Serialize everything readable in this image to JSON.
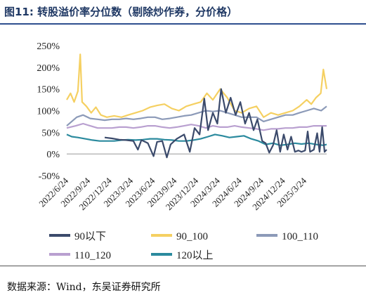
{
  "figure": {
    "number": "图11:",
    "title": "转股溢价率分位数（剔除炒作券，分价格）",
    "source": "数据来源：Wind，东吴证券研究所"
  },
  "chart_data": {
    "type": "line",
    "title": "转股溢价率分位数（剔除炒作券，分价格）",
    "xlabel": "",
    "ylabel": "",
    "x_start": "2022-06-24",
    "x_end": "2025-06-24",
    "x_ticks": [
      "2022/6/24",
      "2022/9/24",
      "2022/12/24",
      "2023/3/24",
      "2023/6/24",
      "2023/9/24",
      "2023/12/24",
      "2024/3/24",
      "2024/6/24",
      "2024/9/24",
      "2024/12/24",
      "2025/3/24"
    ],
    "ylim": [
      -50,
      250
    ],
    "y_ticks": [
      "250%",
      "200%",
      "150%",
      "100%",
      "50%",
      "0%",
      "-50%"
    ],
    "y_tick_values": [
      250,
      200,
      150,
      100,
      50,
      0,
      -50
    ],
    "grid": false,
    "legend_position": "bottom",
    "series": [
      {
        "name": "90以下",
        "color": "#3b4a6b",
        "points": [
          [
            "2022-12-01",
            38
          ],
          [
            "2023-01-01",
            36
          ],
          [
            "2023-02-01",
            33
          ],
          [
            "2023-03-01",
            32
          ],
          [
            "2023-04-01",
            30
          ],
          [
            "2023-04-20",
            10
          ],
          [
            "2023-05-05",
            32
          ],
          [
            "2023-06-01",
            25
          ],
          [
            "2023-06-25",
            -5
          ],
          [
            "2023-07-10",
            28
          ],
          [
            "2023-08-01",
            30
          ],
          [
            "2023-08-20",
            -8
          ],
          [
            "2023-09-05",
            22
          ],
          [
            "2023-10-01",
            35
          ],
          [
            "2023-11-01",
            45
          ],
          [
            "2023-11-25",
            5
          ],
          [
            "2023-12-15",
            60
          ],
          [
            "2024-01-05",
            45
          ],
          [
            "2024-01-25",
            128
          ],
          [
            "2024-02-10",
            55
          ],
          [
            "2024-03-01",
            95
          ],
          [
            "2024-03-20",
            70
          ],
          [
            "2024-04-05",
            150
          ],
          [
            "2024-04-25",
            95
          ],
          [
            "2024-05-15",
            130
          ],
          [
            "2024-06-05",
            90
          ],
          [
            "2024-06-25",
            120
          ],
          [
            "2024-07-15",
            70
          ],
          [
            "2024-08-01",
            95
          ],
          [
            "2024-08-20",
            55
          ],
          [
            "2024-09-05",
            80
          ],
          [
            "2024-09-25",
            30
          ],
          [
            "2024-10-10",
            25
          ],
          [
            "2024-10-25",
            3
          ],
          [
            "2024-11-10",
            20
          ],
          [
            "2024-11-25",
            55
          ],
          [
            "2024-12-10",
            5
          ],
          [
            "2024-12-25",
            45
          ],
          [
            "2025-01-10",
            10
          ],
          [
            "2025-01-25",
            40
          ],
          [
            "2025-02-10",
            5
          ],
          [
            "2025-02-25",
            8
          ],
          [
            "2025-03-10",
            5
          ],
          [
            "2025-03-25",
            8
          ],
          [
            "2025-04-05",
            52
          ],
          [
            "2025-04-15",
            5
          ],
          [
            "2025-05-01",
            10
          ],
          [
            "2025-05-15",
            48
          ],
          [
            "2025-05-25",
            5
          ],
          [
            "2025-06-05",
            62
          ],
          [
            "2025-06-15",
            5
          ],
          [
            "2025-06-24",
            10
          ]
        ]
      },
      {
        "name": "90_100",
        "color": "#f5d062",
        "points": [
          [
            "2022-06-24",
            125
          ],
          [
            "2022-07-10",
            140
          ],
          [
            "2022-07-25",
            120
          ],
          [
            "2022-08-10",
            145
          ],
          [
            "2022-08-20",
            230
          ],
          [
            "2022-08-28",
            120
          ],
          [
            "2022-09-15",
            110
          ],
          [
            "2022-10-05",
            95
          ],
          [
            "2022-10-25",
            108
          ],
          [
            "2022-11-15",
            90
          ],
          [
            "2022-12-10",
            85
          ],
          [
            "2023-01-10",
            88
          ],
          [
            "2023-02-10",
            85
          ],
          [
            "2023-03-10",
            90
          ],
          [
            "2023-04-10",
            95
          ],
          [
            "2023-05-10",
            100
          ],
          [
            "2023-06-10",
            108
          ],
          [
            "2023-07-10",
            112
          ],
          [
            "2023-08-10",
            115
          ],
          [
            "2023-09-10",
            105
          ],
          [
            "2023-10-10",
            100
          ],
          [
            "2023-11-10",
            110
          ],
          [
            "2023-12-10",
            115
          ],
          [
            "2024-01-10",
            120
          ],
          [
            "2024-02-05",
            140
          ],
          [
            "2024-03-01",
            125
          ],
          [
            "2024-04-01",
            150
          ],
          [
            "2024-05-01",
            130
          ],
          [
            "2024-06-01",
            100
          ],
          [
            "2024-07-01",
            95
          ],
          [
            "2024-08-01",
            105
          ],
          [
            "2024-09-01",
            110
          ],
          [
            "2024-10-01",
            85
          ],
          [
            "2024-11-01",
            95
          ],
          [
            "2024-12-01",
            90
          ],
          [
            "2025-01-01",
            95
          ],
          [
            "2025-02-01",
            100
          ],
          [
            "2025-03-01",
            110
          ],
          [
            "2025-04-01",
            125
          ],
          [
            "2025-04-20",
            115
          ],
          [
            "2025-05-10",
            130
          ],
          [
            "2025-05-30",
            140
          ],
          [
            "2025-06-10",
            195
          ],
          [
            "2025-06-24",
            150
          ]
        ]
      },
      {
        "name": "100_110",
        "color": "#8c9ab8",
        "points": [
          [
            "2022-06-24",
            65
          ],
          [
            "2022-07-15",
            75
          ],
          [
            "2022-08-05",
            85
          ],
          [
            "2022-09-01",
            90
          ],
          [
            "2022-10-01",
            82
          ],
          [
            "2022-11-01",
            80
          ],
          [
            "2022-12-01",
            78
          ],
          [
            "2023-01-01",
            80
          ],
          [
            "2023-02-01",
            80
          ],
          [
            "2023-03-01",
            82
          ],
          [
            "2023-04-01",
            80
          ],
          [
            "2023-05-01",
            82
          ],
          [
            "2023-06-01",
            85
          ],
          [
            "2023-07-01",
            85
          ],
          [
            "2023-08-01",
            80
          ],
          [
            "2023-09-01",
            82
          ],
          [
            "2023-10-01",
            85
          ],
          [
            "2023-11-01",
            88
          ],
          [
            "2023-12-01",
            90
          ],
          [
            "2024-01-01",
            95
          ],
          [
            "2024-02-01",
            100
          ],
          [
            "2024-03-01",
            98
          ],
          [
            "2024-04-01",
            100
          ],
          [
            "2024-05-01",
            95
          ],
          [
            "2024-06-01",
            90
          ],
          [
            "2024-07-01",
            85
          ],
          [
            "2024-08-01",
            85
          ],
          [
            "2024-09-01",
            85
          ],
          [
            "2024-10-01",
            75
          ],
          [
            "2024-11-01",
            80
          ],
          [
            "2024-12-01",
            85
          ],
          [
            "2025-01-01",
            90
          ],
          [
            "2025-02-01",
            90
          ],
          [
            "2025-03-01",
            95
          ],
          [
            "2025-04-01",
            100
          ],
          [
            "2025-05-01",
            105
          ],
          [
            "2025-06-01",
            100
          ],
          [
            "2025-06-24",
            110
          ]
        ]
      },
      {
        "name": "110_120",
        "color": "#b9a0d0",
        "points": [
          [
            "2022-06-24",
            60
          ],
          [
            "2022-08-01",
            65
          ],
          [
            "2022-09-01",
            70
          ],
          [
            "2022-10-01",
            65
          ],
          [
            "2022-11-01",
            60
          ],
          [
            "2022-12-01",
            60
          ],
          [
            "2023-01-01",
            60
          ],
          [
            "2023-02-01",
            62
          ],
          [
            "2023-03-01",
            62
          ],
          [
            "2023-04-01",
            60
          ],
          [
            "2023-05-01",
            62
          ],
          [
            "2023-06-01",
            65
          ],
          [
            "2023-07-01",
            65
          ],
          [
            "2023-08-01",
            62
          ],
          [
            "2023-09-01",
            60
          ],
          [
            "2023-10-01",
            62
          ],
          [
            "2023-11-01",
            65
          ],
          [
            "2023-12-01",
            68
          ],
          [
            "2024-01-01",
            65
          ],
          [
            "2024-02-01",
            60
          ],
          [
            "2024-03-01",
            65
          ],
          [
            "2024-04-01",
            62
          ],
          [
            "2024-05-01",
            62
          ],
          [
            "2024-06-01",
            65
          ],
          [
            "2024-07-01",
            62
          ],
          [
            "2024-08-01",
            60
          ],
          [
            "2024-09-01",
            58
          ],
          [
            "2024-10-01",
            55
          ],
          [
            "2024-11-01",
            58
          ],
          [
            "2024-12-01",
            58
          ],
          [
            "2025-01-01",
            60
          ],
          [
            "2025-02-01",
            60
          ],
          [
            "2025-03-01",
            62
          ],
          [
            "2025-04-01",
            62
          ],
          [
            "2025-05-01",
            65
          ],
          [
            "2025-06-01",
            65
          ],
          [
            "2025-06-24",
            65
          ]
        ]
      },
      {
        "name": "120以上",
        "color": "#2b8a9e",
        "points": [
          [
            "2022-06-24",
            45
          ],
          [
            "2022-07-15",
            40
          ],
          [
            "2022-08-10",
            38
          ],
          [
            "2022-09-10",
            35
          ],
          [
            "2022-10-10",
            32
          ],
          [
            "2022-11-10",
            30
          ],
          [
            "2022-12-10",
            30
          ],
          [
            "2023-01-10",
            30
          ],
          [
            "2023-02-10",
            32
          ],
          [
            "2023-03-10",
            33
          ],
          [
            "2023-04-10",
            32
          ],
          [
            "2023-05-10",
            33
          ],
          [
            "2023-06-10",
            35
          ],
          [
            "2023-07-10",
            35
          ],
          [
            "2023-08-10",
            33
          ],
          [
            "2023-09-10",
            32
          ],
          [
            "2023-10-10",
            30
          ],
          [
            "2023-11-10",
            30
          ],
          [
            "2023-12-10",
            32
          ],
          [
            "2024-01-10",
            35
          ],
          [
            "2024-02-10",
            40
          ],
          [
            "2024-03-10",
            45
          ],
          [
            "2024-04-10",
            42
          ],
          [
            "2024-05-10",
            38
          ],
          [
            "2024-06-10",
            40
          ],
          [
            "2024-07-10",
            42
          ],
          [
            "2024-08-10",
            35
          ],
          [
            "2024-09-10",
            30
          ],
          [
            "2024-10-10",
            22
          ],
          [
            "2024-11-10",
            25
          ],
          [
            "2024-12-10",
            20
          ],
          [
            "2025-01-10",
            22
          ],
          [
            "2025-02-10",
            25
          ],
          [
            "2025-03-10",
            23
          ],
          [
            "2025-04-10",
            25
          ],
          [
            "2025-05-10",
            22
          ],
          [
            "2025-06-10",
            20
          ],
          [
            "2025-06-24",
            22
          ]
        ]
      }
    ]
  }
}
